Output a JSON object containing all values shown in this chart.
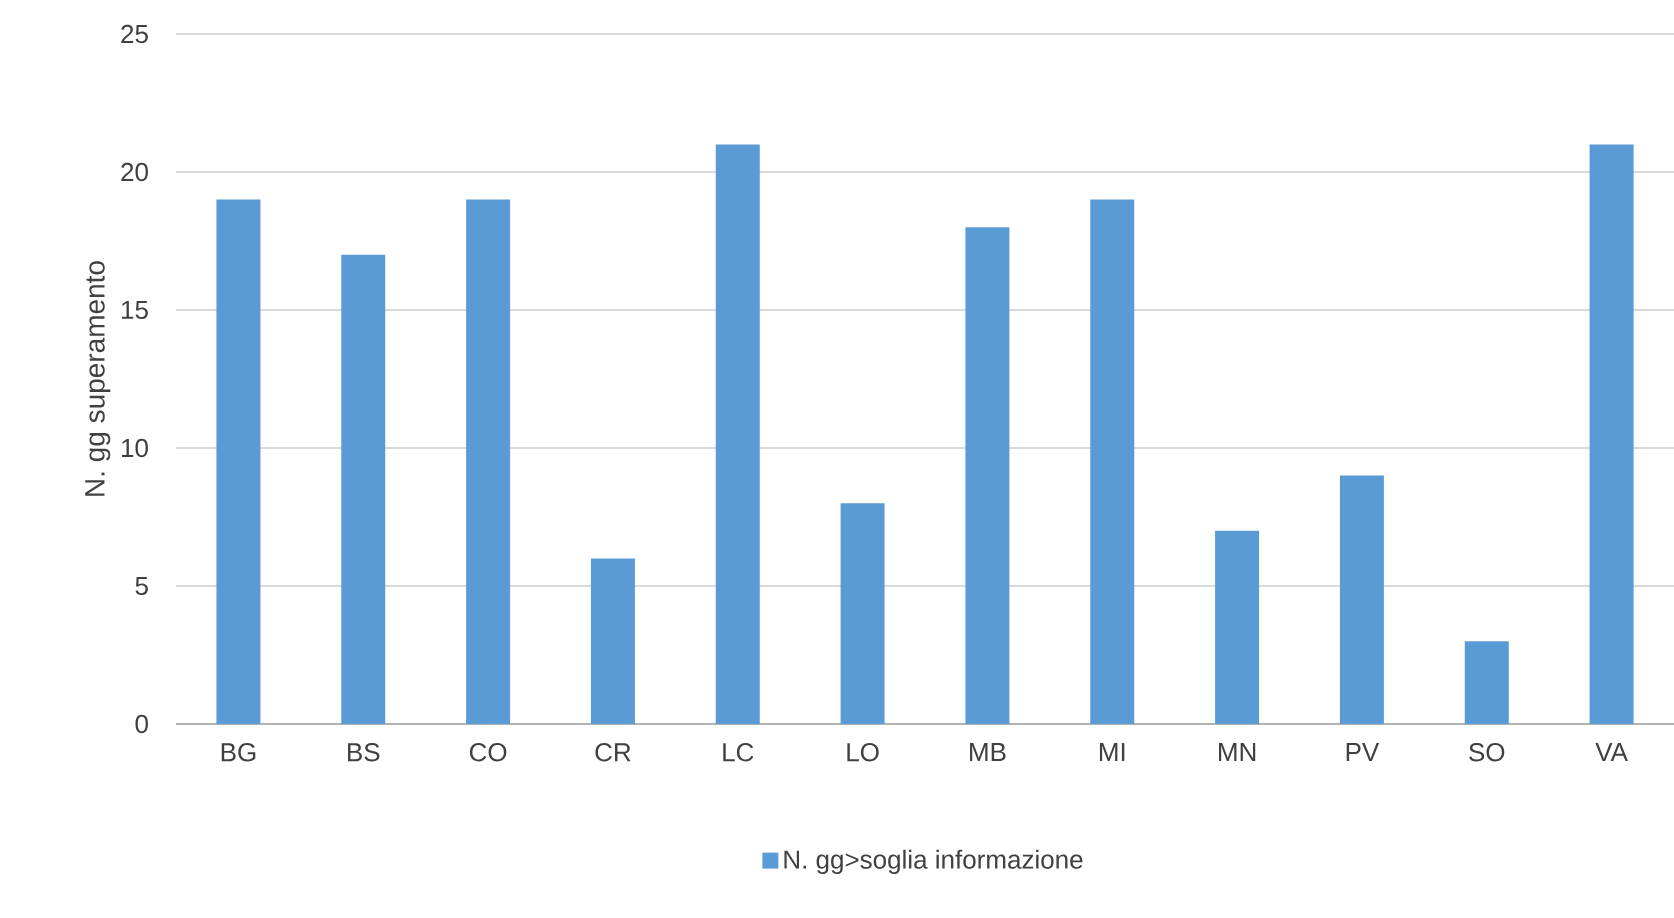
{
  "chart_data": {
    "type": "bar",
    "ylabel": "N. gg superamento",
    "categories": [
      "BG",
      "BS",
      "CO",
      "CR",
      "LC",
      "LO",
      "MB",
      "MI",
      "MN",
      "PV",
      "SO",
      "VA"
    ],
    "series": [
      {
        "name": "N. gg>soglia informazione",
        "color": "#5b9bd5",
        "values": [
          19,
          17,
          19,
          6,
          21,
          8,
          18,
          19,
          7,
          9,
          3,
          21
        ]
      }
    ],
    "ylim": [
      0,
      25
    ],
    "yticks": [
      0,
      5,
      10,
      15,
      20,
      25
    ],
    "grid": "y",
    "legend": "bottom"
  }
}
